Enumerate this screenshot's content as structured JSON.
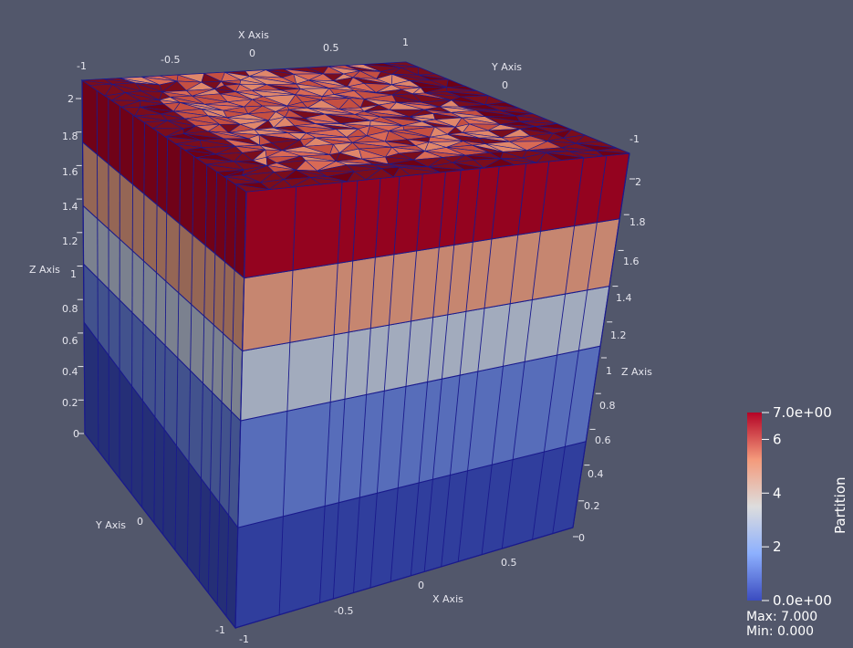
{
  "app": {
    "view": "3D render view",
    "background": "#52576b"
  },
  "mesh": {
    "layers": [
      {
        "z_range": [
          0.0,
          0.4
        ],
        "partition": 0
      },
      {
        "z_range": [
          0.4,
          0.8
        ],
        "partition": 1
      },
      {
        "z_range": [
          0.8,
          1.2
        ],
        "partition": 3
      },
      {
        "z_range": [
          1.2,
          1.6
        ],
        "partition": 5
      },
      {
        "z_range": [
          1.6,
          2.0
        ],
        "partition": 7
      }
    ],
    "edge_color": "#1a1a8c",
    "top_colors": [
      "#7a0d1c",
      "#c54f41",
      "#e0876a",
      "#6e0014",
      "#d96a55"
    ]
  },
  "axes": {
    "x_title": "X Axis",
    "y_title": "Y Axis",
    "z_title": "Z Axis",
    "top_x_ticks": [
      "-1",
      "-0.5",
      "0",
      "0.5",
      "1"
    ],
    "top_y_ticks": [
      "0",
      "-1"
    ],
    "left_z_ticks": [
      "0",
      "0.2",
      "0.4",
      "0.6",
      "0.8",
      "1",
      "1.2",
      "1.4",
      "1.6",
      "1.8",
      "2"
    ],
    "right_z_ticks": [
      "0",
      "0.2",
      "0.4",
      "0.6",
      "0.8",
      "1",
      "1.2",
      "1.4",
      "1.6",
      "1.8",
      "2"
    ],
    "bottom_x_ticks": [
      "-0.5",
      "0",
      "0.5"
    ],
    "bottom_y_ticks": [
      "0",
      "-1"
    ],
    "corner_labels": {
      "bottom_left": "-1",
      "bottom_right": "0",
      "bottom_front": "-1",
      "left_bottom": "0"
    }
  },
  "colorbar": {
    "title": "Partition",
    "range": [
      0,
      7
    ],
    "ticks": [
      {
        "value": 7,
        "label": "7.0e+00"
      },
      {
        "value": 6,
        "label": "6"
      },
      {
        "value": 4,
        "label": "4"
      },
      {
        "value": 2,
        "label": "2"
      },
      {
        "value": 0,
        "label": "0.0e+00"
      }
    ],
    "colors": {
      "low": "#3b4cc0",
      "mid": "#dddddd",
      "high": "#b40426"
    },
    "max_label": "Max: 7.000",
    "min_label": "Min: 0.000"
  }
}
